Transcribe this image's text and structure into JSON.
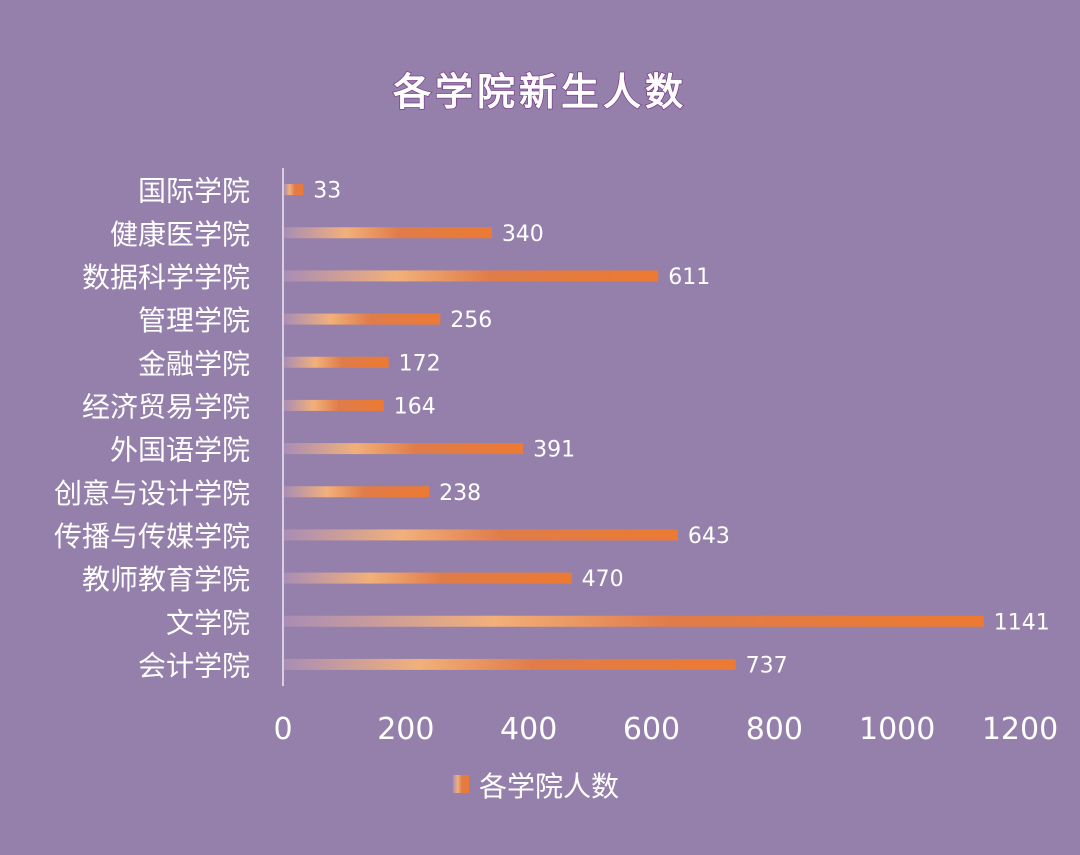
{
  "chart_data": {
    "type": "bar",
    "orientation": "horizontal",
    "title": "各学院新生人数",
    "categories": [
      "国际学院",
      "健康医学院",
      "数据科学学院",
      "管理学院",
      "金融学院",
      "经济贸易学院",
      "外国语学院",
      "创意与设计学院",
      "传播与传媒学院",
      "教师教育学院",
      "文学院",
      "会计学院"
    ],
    "series": [
      {
        "name": "各学院人数",
        "values": [
          33,
          340,
          611,
          256,
          172,
          164,
          391,
          238,
          643,
          470,
          1141,
          737
        ]
      }
    ],
    "xlim": [
      0,
      1200
    ],
    "xticks": [
      "0",
      "200",
      "400",
      "600",
      "800",
      "1000",
      "1200"
    ],
    "grid": false,
    "legend_position": "bottom",
    "colors": {
      "background": "#9580ab",
      "bar_start": "#a98db5",
      "bar_mid": "#f2b07a",
      "bar_end": "#ec7a32",
      "axis_line": "#d8d0e0"
    }
  }
}
